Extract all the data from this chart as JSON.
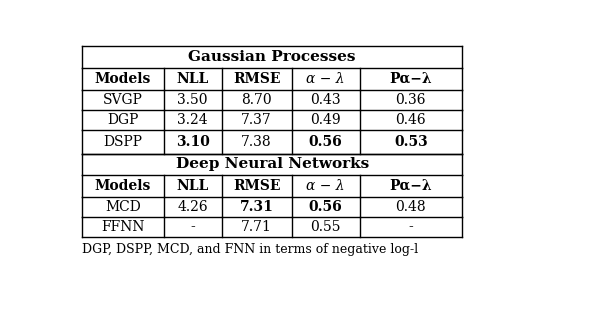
{
  "gp_title": "Gaussian Processes",
  "dnn_title": "Deep Neural Networks",
  "header": [
    "Models",
    "NLL",
    "RMSE",
    "α − λ",
    "Pα−λ"
  ],
  "header_bold": [
    true,
    true,
    true,
    false,
    true
  ],
  "header_italic": [
    false,
    false,
    false,
    true,
    false
  ],
  "gp_rows": [
    [
      "SVGP",
      "3.50",
      "8.70",
      "0.43",
      "0.36"
    ],
    [
      "DGP",
      "3.24",
      "7.37",
      "0.49",
      "0.46"
    ],
    [
      "DSPP",
      "3.10",
      "7.38",
      "0.56",
      "0.53"
    ]
  ],
  "gp_bold": [
    [
      false,
      false,
      false,
      false,
      false
    ],
    [
      false,
      false,
      false,
      false,
      false
    ],
    [
      false,
      true,
      false,
      true,
      true
    ]
  ],
  "dnn_rows": [
    [
      "MCD",
      "4.26",
      "7.31",
      "0.56",
      "0.48"
    ],
    [
      "FFNN",
      "-",
      "7.71",
      "0.55",
      "-"
    ]
  ],
  "dnn_bold": [
    [
      false,
      false,
      true,
      true,
      false
    ],
    [
      false,
      false,
      false,
      false,
      false
    ]
  ],
  "caption": "DGP, DSPP, MCD, and FNN in terms of negative log-l",
  "figsize": [
    5.96,
    3.36
  ],
  "dpi": 100,
  "background": "#ffffff"
}
